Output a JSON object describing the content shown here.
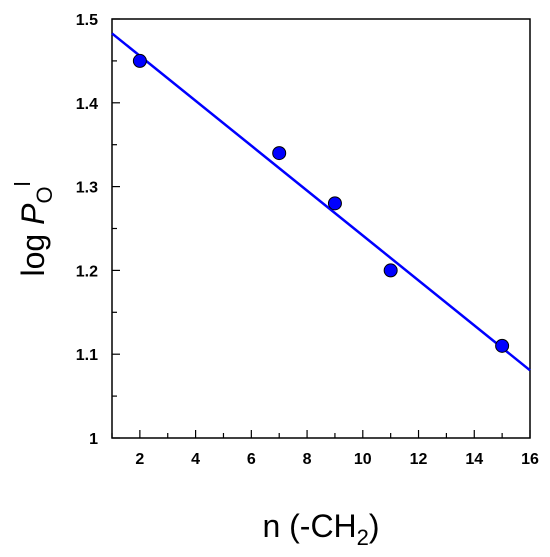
{
  "chart_data": {
    "type": "scatter",
    "title": "",
    "xlabel": {
      "main": "n (-CH",
      "subscript": "2",
      "close": ")"
    },
    "ylabel": {
      "prefix": "log ",
      "italic": "P",
      "subscript": "O",
      "superscript": "l"
    },
    "xlim": [
      1,
      16
    ],
    "ylim": [
      1.0,
      1.5
    ],
    "xticks": [
      "2",
      "4",
      "6",
      "8",
      "10",
      "12",
      "14",
      "16"
    ],
    "yticks": [
      "1",
      "1.1",
      "1.2",
      "1.3",
      "1.4",
      "1.5"
    ],
    "series": [
      {
        "points": [
          {
            "x": 2,
            "y": 1.45
          },
          {
            "x": 7,
            "y": 1.34
          },
          {
            "x": 9,
            "y": 1.28
          },
          {
            "x": 11,
            "y": 1.2
          },
          {
            "x": 15,
            "y": 1.11
          }
        ],
        "color": "#0000ff"
      }
    ],
    "fit_line": {
      "slope": -0.0268,
      "intercept": 1.5096,
      "color": "#0000ff"
    },
    "grid": false
  }
}
